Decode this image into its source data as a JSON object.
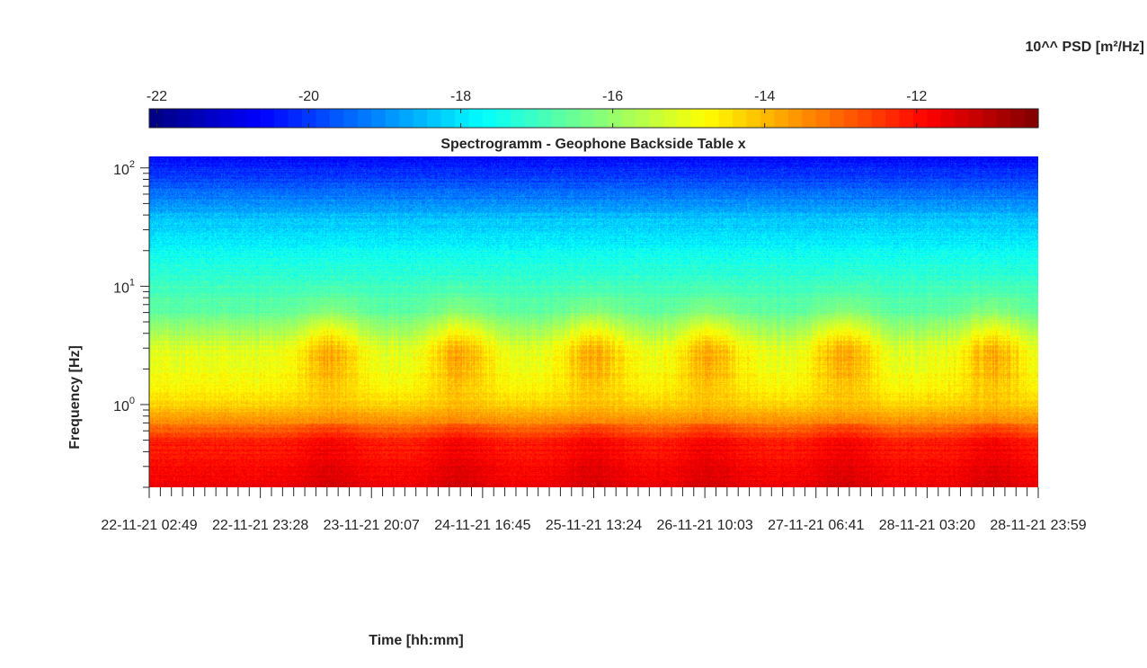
{
  "chart_data": {
    "type": "heatmap",
    "title": "Spectrogramm - Geophone Backside Table x",
    "xlabel": "Time [hh:mm]",
    "ylabel": "Frequency [Hz]",
    "y_scale": "log",
    "y_ticks": [
      {
        "value": 1,
        "base": "10",
        "exp": "0"
      },
      {
        "value": 10,
        "base": "10",
        "exp": "1"
      },
      {
        "value": 100,
        "base": "10",
        "exp": "2"
      }
    ],
    "ylim": [
      0.2,
      125
    ],
    "x_tick_labels": [
      "22-11-21  02:49",
      "22-11-21  23:28",
      "23-11-21  20:07",
      "24-11-21  16:45",
      "25-11-21  13:24",
      "26-11-21  10:03",
      "27-11-21  06:41",
      "28-11-21  03:20",
      "28-11-21  23:59"
    ],
    "colorbar": {
      "label": "10^^ PSD [m²/Hz]",
      "colormap": "jet",
      "range": [
        -22.1,
        -10.4
      ],
      "ticks": [
        "-22",
        "-20",
        "-18",
        "-16",
        "-14",
        "-12"
      ],
      "tick_values": [
        -22,
        -20,
        -18,
        -16,
        -14,
        -12
      ]
    },
    "psd_profile": [
      {
        "freq": 0.2,
        "log10_psd": -11.7
      },
      {
        "freq": 0.3,
        "log10_psd": -11.9
      },
      {
        "freq": 0.5,
        "log10_psd": -12.2
      },
      {
        "freq": 0.7,
        "log10_psd": -13.4
      },
      {
        "freq": 1.0,
        "log10_psd": -14.3
      },
      {
        "freq": 1.5,
        "log10_psd": -14.8
      },
      {
        "freq": 3.0,
        "log10_psd": -15.2
      },
      {
        "freq": 6.0,
        "log10_psd": -16.6
      },
      {
        "freq": 10,
        "log10_psd": -17.0
      },
      {
        "freq": 20,
        "log10_psd": -17.6
      },
      {
        "freq": 40,
        "log10_psd": -18.5
      },
      {
        "freq": 70,
        "log10_psd": -19.6
      },
      {
        "freq": 125,
        "log10_psd": -20.6
      }
    ],
    "activity_periods_x_fraction": [
      0.2,
      0.35,
      0.5,
      0.63,
      0.78,
      0.95
    ],
    "grid": false
  }
}
